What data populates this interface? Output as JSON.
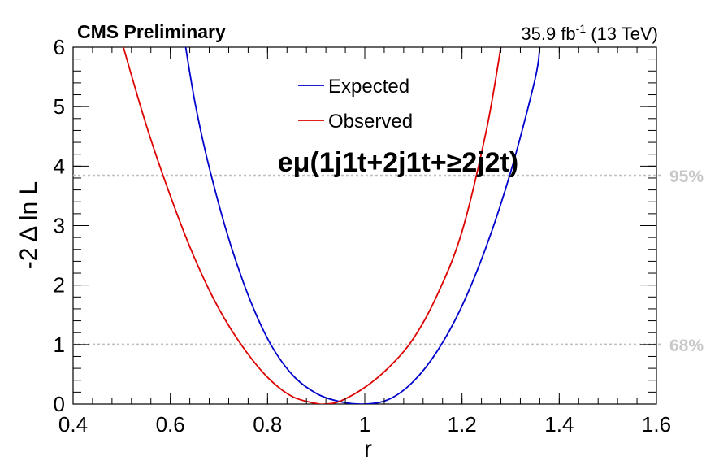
{
  "header": {
    "experiment_label": "CMS Preliminary",
    "lumi_value": "35.9 fb",
    "lumi_exponent": "-1",
    "energy": "(13 TeV)"
  },
  "channel_label": "eμ(1j1t+2j1t+≥2j2t)",
  "chart_data": {
    "type": "line",
    "xlabel": "r",
    "ylabel": "-2 Δ ln L",
    "xlim": [
      0.4,
      1.6
    ],
    "ylim": [
      0,
      6
    ],
    "x_ticks": [
      "0.4",
      "0.6",
      "0.8",
      "1",
      "1.2",
      "1.4",
      "1.6"
    ],
    "y_ticks": [
      "0",
      "1",
      "2",
      "3",
      "4",
      "5",
      "6"
    ],
    "grid": false,
    "legend_position": "top-center",
    "series": [
      {
        "name": "Expected",
        "color": "#0000cc",
        "x": [
          0.6,
          0.65,
          0.7,
          0.75,
          0.8,
          0.85,
          0.9,
          0.95,
          1.0,
          1.05,
          1.1,
          1.15,
          1.2,
          1.25,
          1.3,
          1.35,
          1.36
        ],
        "y": [
          7.7,
          5.1,
          3.35,
          2.05,
          1.1,
          0.5,
          0.18,
          0.04,
          0.0,
          0.08,
          0.38,
          0.9,
          1.65,
          2.65,
          3.9,
          5.45,
          6.0
        ]
      },
      {
        "name": "Observed",
        "color": "#dd0000",
        "x": [
          0.5,
          0.55,
          0.6,
          0.65,
          0.7,
          0.75,
          0.8,
          0.85,
          0.9,
          0.92,
          0.95,
          1.0,
          1.05,
          1.1,
          1.15,
          1.2,
          1.25,
          1.28
        ],
        "y": [
          6.1,
          4.7,
          3.5,
          2.45,
          1.6,
          0.95,
          0.45,
          0.13,
          0.01,
          0.0,
          0.05,
          0.28,
          0.62,
          1.1,
          1.85,
          2.9,
          4.6,
          6.0
        ]
      }
    ],
    "reference_lines": [
      {
        "label": "95%",
        "y": 3.84,
        "color": "#bfbfbf"
      },
      {
        "label": "68%",
        "y": 1.0,
        "color": "#bfbfbf"
      }
    ]
  }
}
